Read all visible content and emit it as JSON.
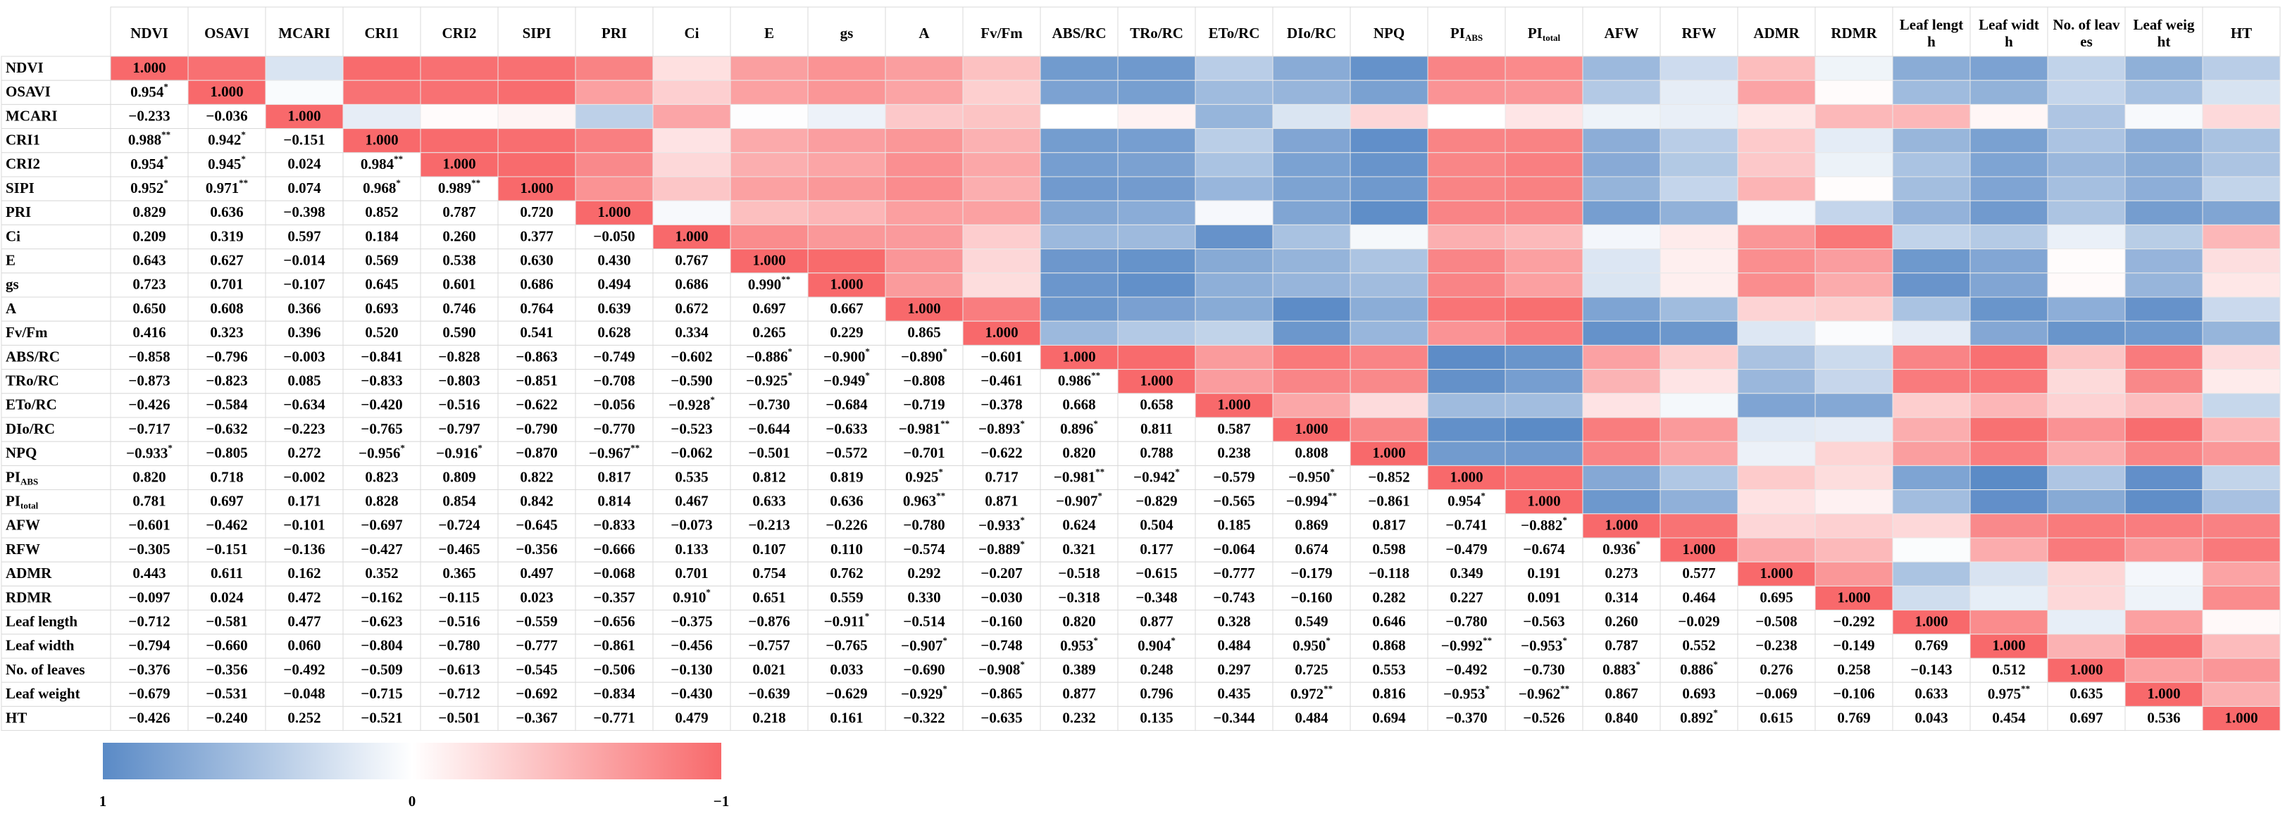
{
  "chart_data": {
    "type": "heatmap",
    "columns": [
      "NDVI",
      "OSAVI",
      "MCARI",
      "CRI1",
      "CRI2",
      "SIPI",
      "PRI",
      "Ci",
      "E",
      "gs",
      "A",
      "Fv/Fm",
      "ABS/RC",
      "TRo/RC",
      "ETo/RC",
      "DIo/RC",
      "NPQ",
      {
        "text": "PI",
        "sub": "ABS"
      },
      {
        "text": "PI",
        "sub": "total"
      },
      "AFW",
      "RFW",
      "ADMR",
      "RDMR",
      {
        "lines": [
          "Leaf lengt",
          "h"
        ]
      },
      {
        "lines": [
          "Leaf widt",
          "h"
        ]
      },
      {
        "lines": [
          "No. of leav",
          "es"
        ]
      },
      {
        "lines": [
          "Leaf weig",
          "ht"
        ]
      },
      "HT"
    ],
    "rows": [
      "NDVI",
      "OSAVI",
      "MCARI",
      "CRI1",
      "CRI2",
      "SIPI",
      "PRI",
      "Ci",
      "E",
      "gs",
      "A",
      "Fv/Fm",
      "ABS/RC",
      "TRo/RC",
      "ETo/RC",
      "DIo/RC",
      "NPQ",
      {
        "text": "PI",
        "sub": "ABS"
      },
      {
        "text": "PI",
        "sub": "total"
      },
      "AFW",
      "RFW",
      "ADMR",
      "RDMR",
      "Leaf length",
      "Leaf width",
      "No. of leaves",
      "Leaf weight",
      "HT"
    ],
    "cells": [
      [
        "1.000"
      ],
      [
        {
          "value": "0.954",
          "sig": "*"
        },
        "1.000"
      ],
      [
        "−0.233",
        "−0.036",
        "1.000"
      ],
      [
        {
          "value": "0.988",
          "sig": "**"
        },
        {
          "value": "0.942",
          "sig": "*"
        },
        "−0.151",
        "1.000"
      ],
      [
        {
          "value": "0.954",
          "sig": "*"
        },
        {
          "value": "0.945",
          "sig": "*"
        },
        "0.024",
        {
          "value": "0.984",
          "sig": "**"
        },
        "1.000"
      ],
      [
        {
          "value": "0.952",
          "sig": "*"
        },
        {
          "value": "0.971",
          "sig": "**"
        },
        "0.074",
        {
          "value": "0.968",
          "sig": "*"
        },
        {
          "value": "0.989",
          "sig": "**"
        },
        "1.000"
      ],
      [
        "0.829",
        "0.636",
        "−0.398",
        "0.852",
        "0.787",
        "0.720",
        "1.000"
      ],
      [
        "0.209",
        "0.319",
        "0.597",
        "0.184",
        "0.260",
        "0.377",
        "−0.050",
        "1.000"
      ],
      [
        "0.643",
        "0.627",
        "−0.014",
        "0.569",
        "0.538",
        "0.630",
        "0.430",
        "0.767",
        "1.000"
      ],
      [
        "0.723",
        "0.701",
        "−0.107",
        "0.645",
        "0.601",
        "0.686",
        "0.494",
        "0.686",
        {
          "value": "0.990",
          "sig": "**"
        },
        "1.000"
      ],
      [
        "0.650",
        "0.608",
        "0.366",
        "0.693",
        "0.746",
        "0.764",
        "0.639",
        "0.672",
        "0.697",
        "0.667",
        "1.000"
      ],
      [
        "0.416",
        "0.323",
        "0.396",
        "0.520",
        "0.590",
        "0.541",
        "0.628",
        "0.334",
        "0.265",
        "0.229",
        "0.865",
        "1.000"
      ],
      [
        "−0.858",
        "−0.796",
        "−0.003",
        "−0.841",
        "−0.828",
        "−0.863",
        "−0.749",
        "−0.602",
        {
          "value": "−0.886",
          "sig": "*"
        },
        {
          "value": "−0.900",
          "sig": "*"
        },
        {
          "value": "−0.890",
          "sig": "*"
        },
        "−0.601",
        "1.000"
      ],
      [
        "−0.873",
        "−0.823",
        "0.085",
        "−0.833",
        "−0.803",
        "−0.851",
        "−0.708",
        "−0.590",
        {
          "value": "−0.925",
          "sig": "*"
        },
        {
          "value": "−0.949",
          "sig": "*"
        },
        "−0.808",
        "−0.461",
        {
          "value": "0.986",
          "sig": "**"
        },
        "1.000"
      ],
      [
        "−0.426",
        "−0.584",
        "−0.634",
        "−0.420",
        "−0.516",
        "−0.622",
        "−0.056",
        {
          "value": "−0.928",
          "sig": "*"
        },
        "−0.730",
        "−0.684",
        "−0.719",
        "−0.378",
        "0.668",
        "0.658",
        "1.000"
      ],
      [
        "−0.717",
        "−0.632",
        "−0.223",
        "−0.765",
        "−0.797",
        "−0.790",
        "−0.770",
        "−0.523",
        "−0.644",
        "−0.633",
        {
          "value": "−0.981",
          "sig": "**"
        },
        {
          "value": "−0.893",
          "sig": "*"
        },
        {
          "value": "0.896",
          "sig": "*"
        },
        "0.811",
        "0.587",
        "1.000"
      ],
      [
        {
          "value": "−0.933",
          "sig": "*"
        },
        "−0.805",
        "0.272",
        {
          "value": "−0.956",
          "sig": "*"
        },
        {
          "value": "−0.916",
          "sig": "*"
        },
        "−0.870",
        {
          "value": "−0.967",
          "sig": "**"
        },
        "−0.062",
        "−0.501",
        "−0.572",
        "−0.701",
        "−0.622",
        "0.820",
        "0.788",
        "0.238",
        "0.808",
        "1.000"
      ],
      [
        "0.820",
        "0.718",
        "−0.002",
        "0.823",
        "0.809",
        "0.822",
        "0.817",
        "0.535",
        "0.812",
        "0.819",
        {
          "value": "0.925",
          "sig": "*"
        },
        "0.717",
        {
          "value": "−0.981",
          "sig": "**"
        },
        {
          "value": "−0.942",
          "sig": "*"
        },
        "−0.579",
        {
          "value": "−0.950",
          "sig": "*"
        },
        "−0.852",
        "1.000"
      ],
      [
        "0.781",
        "0.697",
        "0.171",
        "0.828",
        "0.854",
        "0.842",
        "0.814",
        "0.467",
        "0.633",
        "0.636",
        {
          "value": "0.963",
          "sig": "**"
        },
        "0.871",
        {
          "value": "−0.907",
          "sig": "*"
        },
        "−0.829",
        "−0.565",
        {
          "value": "−0.994",
          "sig": "**"
        },
        "−0.861",
        {
          "value": "0.954",
          "sig": "*"
        },
        "1.000"
      ],
      [
        "−0.601",
        "−0.462",
        "−0.101",
        "−0.697",
        "−0.724",
        "−0.645",
        "−0.833",
        "−0.073",
        "−0.213",
        "−0.226",
        "−0.780",
        {
          "value": "−0.933",
          "sig": "*"
        },
        "0.624",
        "0.504",
        "0.185",
        "0.869",
        "0.817",
        "−0.741",
        {
          "value": "−0.882",
          "sig": "*"
        },
        "1.000"
      ],
      [
        "−0.305",
        "−0.151",
        "−0.136",
        "−0.427",
        "−0.465",
        "−0.356",
        "−0.666",
        "0.133",
        "0.107",
        "0.110",
        "−0.574",
        {
          "value": "−0.889",
          "sig": "*"
        },
        "0.321",
        "0.177",
        "−0.064",
        "0.674",
        "0.598",
        "−0.479",
        "−0.674",
        {
          "value": "0.936",
          "sig": "*"
        },
        "1.000"
      ],
      [
        "0.443",
        "0.611",
        "0.162",
        "0.352",
        "0.365",
        "0.497",
        "−0.068",
        "0.701",
        "0.754",
        "0.762",
        "0.292",
        "−0.207",
        "−0.518",
        "−0.615",
        "−0.777",
        "−0.179",
        "−0.118",
        "0.349",
        "0.191",
        "0.273",
        "0.577",
        "1.000"
      ],
      [
        "−0.097",
        "0.024",
        "0.472",
        "−0.162",
        "−0.115",
        "0.023",
        "−0.357",
        {
          "value": "0.910",
          "sig": "*"
        },
        "0.651",
        "0.559",
        "0.330",
        "−0.030",
        "−0.318",
        "−0.348",
        "−0.743",
        "−0.160",
        "0.282",
        "0.227",
        "0.091",
        "0.314",
        "0.464",
        "0.695",
        "1.000"
      ],
      [
        "−0.712",
        "−0.581",
        "0.477",
        "−0.623",
        "−0.516",
        "−0.559",
        "−0.656",
        "−0.375",
        "−0.876",
        {
          "value": "−0.911",
          "sig": "*"
        },
        "−0.514",
        "−0.160",
        "0.820",
        "0.877",
        "0.328",
        "0.549",
        "0.646",
        "−0.780",
        "−0.563",
        "0.260",
        "−0.029",
        "−0.508",
        "−0.292",
        "1.000"
      ],
      [
        "−0.794",
        "−0.660",
        "0.060",
        "−0.804",
        "−0.780",
        "−0.777",
        "−0.861",
        "−0.456",
        "−0.757",
        "−0.765",
        {
          "value": "−0.907",
          "sig": "*"
        },
        "−0.748",
        {
          "value": "0.953",
          "sig": "*"
        },
        {
          "value": "0.904",
          "sig": "*"
        },
        "0.484",
        {
          "value": "0.950",
          "sig": "*"
        },
        "0.868",
        {
          "value": "−0.992",
          "sig": "**"
        },
        {
          "value": "−0.953",
          "sig": "*"
        },
        "0.787",
        "0.552",
        "−0.238",
        "−0.149",
        "0.769",
        "1.000"
      ],
      [
        "−0.376",
        "−0.356",
        "−0.492",
        "−0.509",
        "−0.613",
        "−0.545",
        "−0.506",
        "−0.130",
        "0.021",
        "0.033",
        "−0.690",
        {
          "value": "−0.908",
          "sig": "*"
        },
        "0.389",
        "0.248",
        "0.297",
        "0.725",
        "0.553",
        "−0.492",
        "−0.730",
        {
          "value": "0.883",
          "sig": "*"
        },
        {
          "value": "0.886",
          "sig": "*"
        },
        "0.276",
        "0.258",
        "−0.143",
        "0.512",
        "1.000"
      ],
      [
        "−0.679",
        "−0.531",
        "−0.048",
        "−0.715",
        "−0.712",
        "−0.692",
        "−0.834",
        "−0.430",
        "−0.639",
        "−0.629",
        {
          "value": "−0.929",
          "sig": "*"
        },
        "−0.865",
        "0.877",
        "0.796",
        "0.435",
        {
          "value": "0.972",
          "sig": "**"
        },
        "0.816",
        {
          "value": "−0.953",
          "sig": "*"
        },
        {
          "value": "−0.962",
          "sig": "**"
        },
        "0.867",
        "0.693",
        "−0.069",
        "−0.106",
        "0.633",
        {
          "value": "0.975",
          "sig": "**"
        },
        "0.635",
        "1.000"
      ],
      [
        "−0.426",
        "−0.240",
        "0.252",
        "−0.521",
        "−0.501",
        "−0.367",
        "−0.771",
        "0.479",
        "0.218",
        "0.161",
        "−0.322",
        "−0.635",
        "0.232",
        "0.135",
        "−0.344",
        "0.484",
        "0.694",
        "−0.370",
        "−0.526",
        "0.840",
        {
          "value": "0.892",
          "sig": "*"
        },
        "0.615",
        "0.769",
        "0.043",
        "0.454",
        "0.697",
        "0.536",
        "1.000"
      ]
    ],
    "colors": {
      "positive": "#f8696b",
      "negative": "#5a8ac6"
    },
    "colorbar": {
      "labels": [
        "1",
        "0",
        "−1"
      ]
    }
  }
}
